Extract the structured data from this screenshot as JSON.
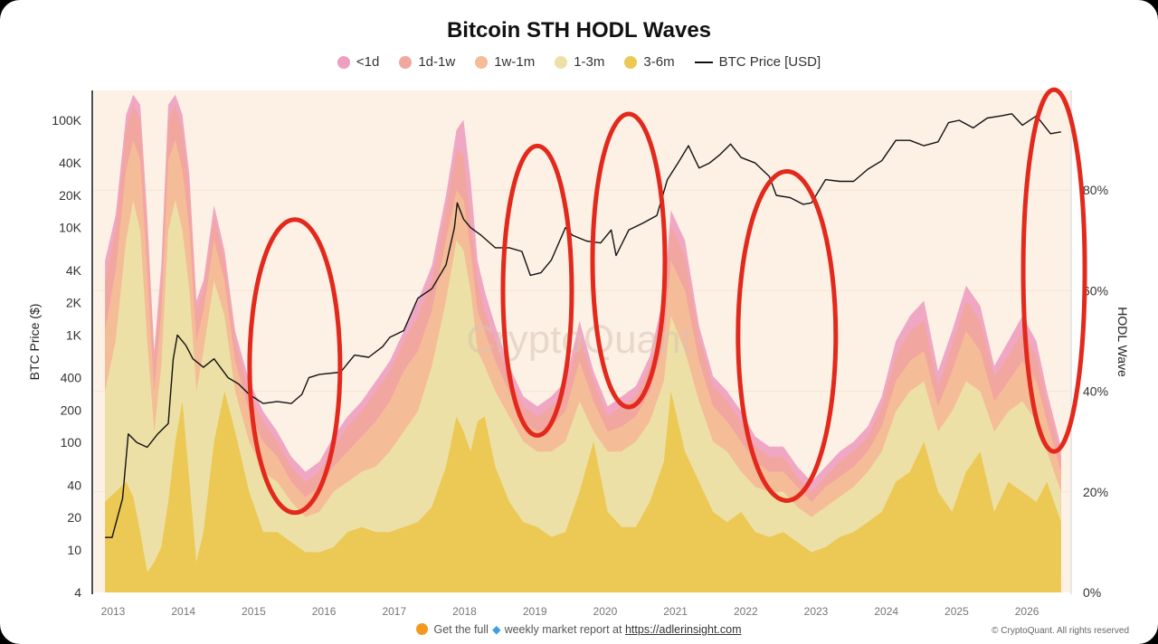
{
  "footer": {
    "text": "Get the full",
    "text2": "weekly market report at",
    "link": "https://adlerinsight.com",
    "copyright": "© CryptoQuant. All rights reserved"
  },
  "chart_data": {
    "type": "area",
    "title": "Bitcoin STH HODL Waves",
    "watermark": "CryptoQuant",
    "legend": [
      "<1d",
      "1d-1w",
      "1w-1m",
      "1-3m",
      "3-6m",
      "BTC Price [USD]"
    ],
    "ylabel_left": "BTC Price ($)",
    "ylabel_right": "HODL Wave",
    "y_left_scale": "log",
    "y_left_ticks": [
      4,
      10,
      20,
      40,
      100,
      200,
      400,
      "1K",
      "2K",
      "4K",
      "10K",
      "20K",
      "40K",
      "100K"
    ],
    "y_left_tick_values": [
      4,
      10,
      20,
      40,
      100,
      200,
      400,
      1000,
      2000,
      4000,
      10000,
      20000,
      40000,
      100000
    ],
    "y_right_ticks": [
      "0%",
      "20%",
      "40%",
      "60%",
      "80%"
    ],
    "y_right_tick_values": [
      0,
      20,
      40,
      60,
      80
    ],
    "x_ticks": [
      "2013",
      "2014",
      "2015",
      "2016",
      "2017",
      "2018",
      "2019",
      "2020",
      "2021",
      "2022",
      "2023",
      "2024",
      "2025",
      "2026"
    ],
    "colors": {
      "lt1d": "#ee9ec0",
      "d1w1": "#f2a6a0",
      "w1m1": "#f5bc98",
      "m1m3": "#ede0a6",
      "m3m6": "#ecc854",
      "price": "#111111",
      "annotation": "#e2291c",
      "plot_bg": "#fdf1e6"
    },
    "series": [
      {
        "name": "3-6m",
        "x": [
          2012.95,
          2013.1,
          2013.25,
          2013.35,
          2013.45,
          2013.55,
          2013.65,
          2013.75,
          2013.85,
          2013.95,
          2014.05,
          2014.15,
          2014.25,
          2014.35,
          2014.5,
          2014.65,
          2014.8,
          2015.0,
          2015.2,
          2015.4,
          2015.6,
          2015.8,
          2016.0,
          2016.2,
          2016.4,
          2016.6,
          2016.8,
          2017.0,
          2017.2,
          2017.4,
          2017.6,
          2017.8,
          2017.95,
          2018.05,
          2018.15,
          2018.25,
          2018.35,
          2018.5,
          2018.7,
          2018.9,
          2019.1,
          2019.3,
          2019.5,
          2019.7,
          2019.9,
          2020.1,
          2020.3,
          2020.5,
          2020.7,
          2020.9,
          2021.0,
          2021.2,
          2021.4,
          2021.6,
          2021.8,
          2022.0,
          2022.2,
          2022.4,
          2022.6,
          2022.8,
          2023.0,
          2023.2,
          2023.4,
          2023.6,
          2023.8,
          2024.0,
          2024.2,
          2024.4,
          2024.6,
          2024.8,
          2025.0,
          2025.2,
          2025.4,
          2025.6,
          2025.8,
          2026.0,
          2026.2,
          2026.35,
          2026.55
        ],
        "values": [
          18,
          20,
          22,
          19,
          12,
          4,
          6,
          9,
          18,
          30,
          38,
          22,
          6,
          12,
          30,
          40,
          32,
          20,
          12,
          12,
          10,
          8,
          8,
          9,
          12,
          13,
          12,
          12,
          13,
          14,
          17,
          25,
          35,
          32,
          28,
          34,
          35,
          25,
          18,
          14,
          13,
          11,
          12,
          20,
          30,
          16,
          13,
          13,
          18,
          26,
          40,
          28,
          22,
          16,
          14,
          16,
          12,
          11,
          12,
          10,
          8,
          9,
          11,
          12,
          14,
          16,
          22,
          24,
          30,
          20,
          16,
          24,
          28,
          16,
          22,
          20,
          18,
          22,
          14
        ]
      },
      {
        "name": "1-3m",
        "x": [
          2012.95,
          2013.1,
          2013.25,
          2013.35,
          2013.45,
          2013.55,
          2013.65,
          2013.75,
          2013.85,
          2013.95,
          2014.05,
          2014.15,
          2014.25,
          2014.35,
          2014.5,
          2014.65,
          2014.8,
          2015.0,
          2015.2,
          2015.4,
          2015.6,
          2015.8,
          2016.0,
          2016.2,
          2016.4,
          2016.6,
          2016.8,
          2017.0,
          2017.2,
          2017.4,
          2017.6,
          2017.8,
          2017.95,
          2018.05,
          2018.15,
          2018.25,
          2018.35,
          2018.5,
          2018.7,
          2018.9,
          2019.1,
          2019.3,
          2019.5,
          2019.7,
          2019.9,
          2020.1,
          2020.3,
          2020.5,
          2020.7,
          2020.9,
          2021.0,
          2021.2,
          2021.4,
          2021.6,
          2021.8,
          2022.0,
          2022.2,
          2022.4,
          2022.6,
          2022.8,
          2023.0,
          2023.2,
          2023.4,
          2023.6,
          2023.8,
          2024.0,
          2024.2,
          2024.4,
          2024.6,
          2024.8,
          2025.0,
          2025.2,
          2025.4,
          2025.6,
          2025.8,
          2026.0,
          2026.2,
          2026.35,
          2026.55
        ],
        "values": [
          40,
          50,
          70,
          78,
          72,
          50,
          32,
          45,
          72,
          78,
          72,
          60,
          40,
          48,
          62,
          55,
          40,
          30,
          24,
          22,
          18,
          15,
          16,
          20,
          22,
          24,
          25,
          28,
          32,
          36,
          45,
          58,
          70,
          68,
          60,
          48,
          45,
          40,
          35,
          30,
          28,
          28,
          30,
          38,
          32,
          28,
          28,
          30,
          34,
          42,
          55,
          48,
          38,
          30,
          28,
          24,
          21,
          20,
          20,
          17,
          15,
          17,
          19,
          21,
          24,
          28,
          36,
          40,
          42,
          32,
          36,
          42,
          40,
          32,
          36,
          38,
          34,
          28,
          20
        ]
      },
      {
        "name": "1w-1m",
        "x": [
          2012.95,
          2013.1,
          2013.25,
          2013.35,
          2013.45,
          2013.55,
          2013.65,
          2013.75,
          2013.85,
          2013.95,
          2014.05,
          2014.15,
          2014.25,
          2014.35,
          2014.5,
          2014.65,
          2014.8,
          2015.0,
          2015.2,
          2015.4,
          2015.6,
          2015.8,
          2016.0,
          2016.2,
          2016.4,
          2016.6,
          2016.8,
          2017.0,
          2017.2,
          2017.4,
          2017.6,
          2017.8,
          2017.95,
          2018.05,
          2018.15,
          2018.25,
          2018.35,
          2018.5,
          2018.7,
          2018.9,
          2019.1,
          2019.3,
          2019.5,
          2019.7,
          2019.9,
          2020.1,
          2020.3,
          2020.5,
          2020.7,
          2020.9,
          2021.0,
          2021.2,
          2021.4,
          2021.6,
          2021.8,
          2022.0,
          2022.2,
          2022.4,
          2022.6,
          2022.8,
          2023.0,
          2023.2,
          2023.4,
          2023.6,
          2023.8,
          2024.0,
          2024.2,
          2024.4,
          2024.6,
          2024.8,
          2025.0,
          2025.2,
          2025.4,
          2025.6,
          2025.8,
          2026.0,
          2026.2,
          2026.35,
          2026.55
        ],
        "values": [
          52,
          64,
          84,
          90,
          86,
          64,
          40,
          56,
          86,
          90,
          84,
          72,
          50,
          56,
          70,
          62,
          46,
          36,
          30,
          27,
          22,
          19,
          21,
          25,
          28,
          31,
          34,
          38,
          44,
          48,
          56,
          70,
          80,
          78,
          68,
          56,
          52,
          46,
          40,
          34,
          32,
          33,
          36,
          46,
          38,
          32,
          33,
          35,
          40,
          50,
          66,
          60,
          46,
          37,
          34,
          30,
          26,
          24,
          24,
          21,
          18,
          21,
          23,
          25,
          28,
          33,
          42,
          46,
          48,
          37,
          44,
          52,
          48,
          38,
          42,
          46,
          42,
          34,
          24
        ]
      },
      {
        "name": "1d-1w",
        "x": [
          2012.95,
          2013.1,
          2013.25,
          2013.35,
          2013.45,
          2013.55,
          2013.65,
          2013.75,
          2013.85,
          2013.95,
          2014.05,
          2014.15,
          2014.25,
          2014.35,
          2014.5,
          2014.65,
          2014.8,
          2015.0,
          2015.2,
          2015.4,
          2015.6,
          2015.8,
          2016.0,
          2016.2,
          2016.4,
          2016.6,
          2016.8,
          2017.0,
          2017.2,
          2017.4,
          2017.6,
          2017.8,
          2017.95,
          2018.05,
          2018.15,
          2018.25,
          2018.35,
          2018.5,
          2018.7,
          2018.9,
          2019.1,
          2019.3,
          2019.5,
          2019.7,
          2019.9,
          2020.1,
          2020.3,
          2020.5,
          2020.7,
          2020.9,
          2021.0,
          2021.2,
          2021.4,
          2021.6,
          2021.8,
          2022.0,
          2022.2,
          2022.4,
          2022.6,
          2022.8,
          2023.0,
          2023.2,
          2023.4,
          2023.6,
          2023.8,
          2024.0,
          2024.2,
          2024.4,
          2024.6,
          2024.8,
          2025.0,
          2025.2,
          2025.4,
          2025.6,
          2025.8,
          2026.0,
          2026.2,
          2026.35,
          2026.55
        ],
        "values": [
          62,
          72,
          92,
          97,
          94,
          72,
          46,
          62,
          94,
          97,
          92,
          80,
          56,
          60,
          75,
          66,
          50,
          40,
          34,
          30,
          25,
          22,
          24,
          29,
          33,
          36,
          40,
          44,
          50,
          55,
          62,
          76,
          88,
          87,
          74,
          62,
          56,
          50,
          43,
          37,
          35,
          37,
          40,
          51,
          42,
          35,
          37,
          39,
          45,
          56,
          73,
          67,
          51,
          41,
          38,
          34,
          29,
          27,
          27,
          23,
          20,
          23,
          26,
          28,
          31,
          37,
          47,
          52,
          54,
          41,
          49,
          58,
          54,
          43,
          47,
          52,
          47,
          38,
          27
        ]
      },
      {
        "name": "<1d",
        "x": [
          2012.95,
          2013.1,
          2013.25,
          2013.35,
          2013.45,
          2013.55,
          2013.65,
          2013.75,
          2013.85,
          2013.95,
          2014.05,
          2014.15,
          2014.25,
          2014.35,
          2014.5,
          2014.65,
          2014.8,
          2015.0,
          2015.2,
          2015.4,
          2015.6,
          2015.8,
          2016.0,
          2016.2,
          2016.4,
          2016.6,
          2016.8,
          2017.0,
          2017.2,
          2017.4,
          2017.6,
          2017.8,
          2017.95,
          2018.05,
          2018.15,
          2018.25,
          2018.35,
          2018.5,
          2018.7,
          2018.9,
          2019.1,
          2019.3,
          2019.5,
          2019.7,
          2019.9,
          2020.1,
          2020.3,
          2020.5,
          2020.7,
          2020.9,
          2021.0,
          2021.2,
          2021.4,
          2021.6,
          2021.8,
          2022.0,
          2022.2,
          2022.4,
          2022.6,
          2022.8,
          2023.0,
          2023.2,
          2023.4,
          2023.6,
          2023.8,
          2024.0,
          2024.2,
          2024.4,
          2024.6,
          2024.8,
          2025.0,
          2025.2,
          2025.4,
          2025.6,
          2025.8,
          2026.0,
          2026.2,
          2026.35,
          2026.55
        ],
        "values": [
          66,
          75,
          95,
          99,
          97,
          75,
          48,
          65,
          97,
          99,
          95,
          83,
          58,
          62,
          77,
          68,
          52,
          42,
          36,
          32,
          27,
          24,
          26,
          31,
          35,
          38,
          42,
          46,
          52,
          58,
          65,
          79,
          92,
          94,
          82,
          66,
          60,
          53,
          45,
          39,
          37,
          39,
          42,
          54,
          44,
          37,
          39,
          41,
          47,
          59,
          76,
          70,
          53,
          43,
          40,
          36,
          31,
          29,
          29,
          25,
          22,
          25,
          28,
          30,
          33,
          39,
          50,
          55,
          58,
          44,
          52,
          61,
          57,
          45,
          50,
          55,
          50,
          40,
          29
        ]
      },
      {
        "name": "BTC Price [USD]",
        "x": [
          2012.95,
          2013.05,
          2013.2,
          2013.28,
          2013.4,
          2013.55,
          2013.7,
          2013.85,
          2013.92,
          2013.98,
          2014.1,
          2014.2,
          2014.35,
          2014.5,
          2014.7,
          2014.85,
          2015.0,
          2015.2,
          2015.4,
          2015.6,
          2015.75,
          2015.85,
          2016.0,
          2016.3,
          2016.5,
          2016.7,
          2016.9,
          2017.0,
          2017.2,
          2017.4,
          2017.6,
          2017.8,
          2017.92,
          2017.96,
          2018.05,
          2018.15,
          2018.3,
          2018.5,
          2018.7,
          2018.88,
          2019.0,
          2019.15,
          2019.3,
          2019.5,
          2019.6,
          2019.8,
          2020.0,
          2020.15,
          2020.22,
          2020.4,
          2020.6,
          2020.8,
          2020.95,
          2021.1,
          2021.25,
          2021.4,
          2021.55,
          2021.7,
          2021.85,
          2022.0,
          2022.2,
          2022.4,
          2022.5,
          2022.7,
          2022.88,
          2023.0,
          2023.2,
          2023.4,
          2023.6,
          2023.8,
          2024.0,
          2024.2,
          2024.4,
          2024.6,
          2024.8,
          2024.95,
          2025.1,
          2025.3,
          2025.5,
          2025.7,
          2025.85,
          2026.0,
          2026.2,
          2026.4,
          2026.55
        ],
        "values": [
          13,
          13,
          30,
          120,
          100,
          90,
          120,
          150,
          600,
          1000,
          800,
          600,
          500,
          600,
          400,
          350,
          280,
          230,
          240,
          230,
          280,
          400,
          430,
          450,
          650,
          620,
          780,
          950,
          1100,
          2200,
          2700,
          4500,
          10000,
          17000,
          12000,
          10000,
          8500,
          6500,
          6500,
          6000,
          3600,
          3800,
          5000,
          10000,
          8500,
          7500,
          7200,
          9500,
          5500,
          9500,
          11000,
          13000,
          28000,
          40000,
          58000,
          36000,
          40000,
          48000,
          60000,
          45000,
          40000,
          30000,
          20000,
          19000,
          16500,
          17000,
          28000,
          27000,
          27000,
          35000,
          42000,
          65000,
          65000,
          58000,
          63000,
          95000,
          100000,
          85000,
          105000,
          110000,
          115000,
          90000,
          110000,
          75000,
          78000
        ]
      }
    ],
    "annotations": [
      {
        "type": "ellipse",
        "x_center": 2015.65,
        "y_center_pct": 45
      },
      {
        "type": "ellipse",
        "x_center": 2019.1,
        "y_center_pct": 60
      },
      {
        "type": "ellipse",
        "x_center": 2020.4,
        "y_center_pct": 66
      },
      {
        "type": "ellipse",
        "x_center": 2022.65,
        "y_center_pct": 51
      },
      {
        "type": "ellipse",
        "x_center": 2026.45,
        "y_center_pct": 64
      }
    ]
  }
}
